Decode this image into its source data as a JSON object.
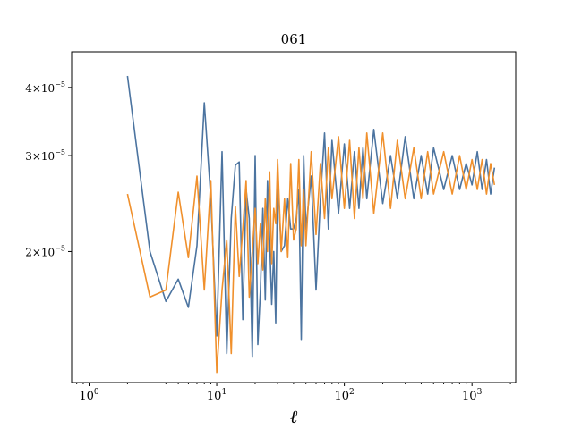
{
  "chart_data": {
    "type": "line",
    "title": "061",
    "xlabel": "ℓ",
    "ylabel": "",
    "xscale": "log",
    "yscale": "log",
    "xlim": [
      0.73,
      2200
    ],
    "ylim": [
      1.15e-05,
      4.65e-05
    ],
    "grid": false,
    "legend": "none",
    "x_ticks": [
      {
        "value": 1,
        "base": "10",
        "exp": "0"
      },
      {
        "value": 10,
        "base": "10",
        "exp": "1"
      },
      {
        "value": 100,
        "base": "10",
        "exp": "2"
      },
      {
        "value": 1000,
        "base": "10",
        "exp": "3"
      }
    ],
    "y_ticks": [
      {
        "value": 2e-05,
        "coef": "2×10",
        "exp": "−5"
      },
      {
        "value": 3e-05,
        "coef": "3×10",
        "exp": "−5"
      },
      {
        "value": 4e-05,
        "coef": "4×10",
        "exp": "−5"
      }
    ],
    "series": [
      {
        "color": "#4c74a0",
        "x": [
          2,
          3,
          4,
          5,
          6,
          7,
          8,
          9,
          10,
          11,
          12,
          13,
          14,
          15,
          16,
          17,
          18,
          19,
          20,
          21,
          22,
          23,
          24,
          25,
          26,
          27,
          28,
          29,
          30,
          32,
          34,
          36,
          38,
          40,
          42,
          44,
          46,
          48,
          50,
          55,
          60,
          65,
          70,
          75,
          80,
          90,
          100,
          110,
          120,
          130,
          140,
          150,
          170,
          200,
          230,
          260,
          300,
          350,
          400,
          450,
          500,
          600,
          700,
          800,
          900,
          1000,
          1100,
          1200,
          1300,
          1400,
          1500
        ],
        "y": [
          4.2e-05,
          2e-05,
          1.62e-05,
          1.78e-05,
          1.58e-05,
          2.05e-05,
          3.75e-05,
          2.5e-05,
          1.4e-05,
          3.05e-05,
          1.3e-05,
          2.3e-05,
          2.88e-05,
          2.92e-05,
          1.5e-05,
          2.6e-05,
          2.3e-05,
          1.28e-05,
          3e-05,
          1.35e-05,
          1.7e-05,
          2.4e-05,
          1.63e-05,
          2.7e-05,
          2.1e-05,
          1.6e-05,
          2e-05,
          1.48e-05,
          2.8e-05,
          2e-05,
          2.05e-05,
          2.5e-05,
          2.2e-05,
          2.2e-05,
          2.3e-05,
          2.6e-05,
          1.38e-05,
          3e-05,
          2.2e-05,
          2.75e-05,
          1.7e-05,
          2.5e-05,
          3.3e-05,
          2.2e-05,
          3.2e-05,
          2.35e-05,
          3.15e-05,
          2.4e-05,
          3.05e-05,
          2.4e-05,
          3.1e-05,
          2.5e-05,
          3.35e-05,
          2.45e-05,
          3e-05,
          2.5e-05,
          3.25e-05,
          2.5e-05,
          3e-05,
          2.55e-05,
          3.1e-05,
          2.6e-05,
          3e-05,
          2.6e-05,
          2.9e-05,
          2.65e-05,
          3.05e-05,
          2.6e-05,
          2.95e-05,
          2.55e-05,
          2.85e-05
        ]
      },
      {
        "color": "#f0902c",
        "x": [
          2,
          3,
          4,
          5,
          6,
          7,
          8,
          9,
          10,
          11,
          12,
          13,
          14,
          15,
          16,
          17,
          18,
          19,
          20,
          21,
          22,
          23,
          24,
          25,
          26,
          27,
          28,
          29,
          30,
          32,
          34,
          36,
          38,
          40,
          42,
          44,
          46,
          48,
          50,
          55,
          60,
          65,
          70,
          75,
          80,
          90,
          100,
          110,
          120,
          130,
          140,
          150,
          170,
          200,
          230,
          260,
          300,
          350,
          400,
          450,
          500,
          600,
          700,
          800,
          900,
          1000,
          1100,
          1200,
          1300,
          1400,
          1500
        ],
        "y": [
          2.55e-05,
          1.65e-05,
          1.7e-05,
          2.57e-05,
          1.95e-05,
          2.75e-05,
          1.7e-05,
          2.7e-05,
          1.2e-05,
          1.7e-05,
          2.1e-05,
          1.3e-05,
          2.42e-05,
          1.8e-05,
          2.2e-05,
          2.7e-05,
          1.65e-05,
          2e-05,
          2.4e-05,
          1.9e-05,
          2.25e-05,
          1.85e-05,
          2.5e-05,
          2e-05,
          2.8e-05,
          1.9e-05,
          2.4e-05,
          2.25e-05,
          2.95e-05,
          2e-05,
          2.5e-05,
          1.95e-05,
          2.9e-05,
          2.1e-05,
          2.2e-05,
          2.95e-05,
          2.05e-05,
          2.6e-05,
          2.05e-05,
          3.05e-05,
          2.15e-05,
          2.9e-05,
          2.3e-05,
          3.1e-05,
          2.5e-05,
          3.25e-05,
          2.4e-05,
          3.2e-05,
          2.3e-05,
          3.1e-05,
          2.5e-05,
          3.3e-05,
          2.35e-05,
          3.3e-05,
          2.4e-05,
          3.2e-05,
          2.5e-05,
          3.1e-05,
          2.5e-05,
          3.05e-05,
          2.55e-05,
          3.05e-05,
          2.55e-05,
          3e-05,
          2.6e-05,
          2.95e-05,
          2.6e-05,
          2.95e-05,
          2.55e-05,
          2.9e-05,
          2.65e-05
        ]
      }
    ]
  }
}
